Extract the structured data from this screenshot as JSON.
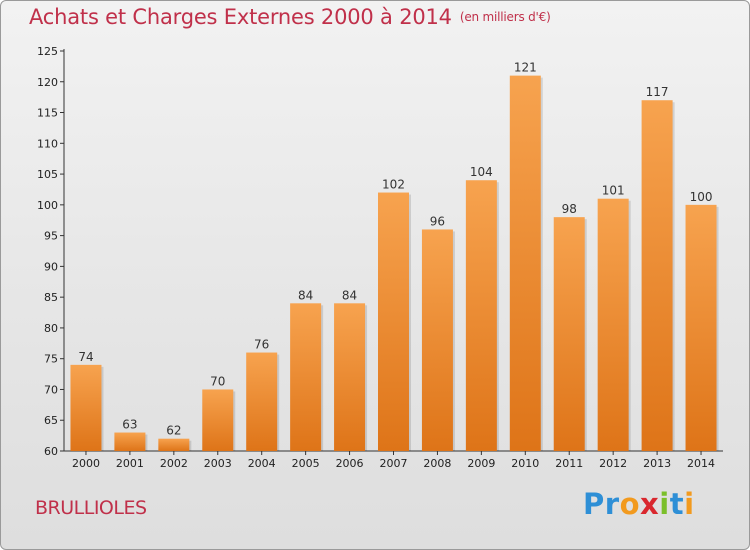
{
  "title": "Achats et Charges Externes 2000 à 2014",
  "unit": "(en milliers d'€)",
  "commune": "BRULLIOLES",
  "logo": {
    "text": "Proxiti",
    "letters": [
      "P",
      "r",
      "o",
      "x",
      "i",
      "t",
      "i"
    ],
    "colors": [
      "#2e8fd6",
      "#2e8fd6",
      "#f29a1e",
      "#d9272e",
      "#7bbf2a",
      "#2e8fd6",
      "#f29a1e"
    ]
  },
  "colors": {
    "title": "#c0304a",
    "bar_top": "#f7a34f",
    "bar_bottom": "#de7418"
  },
  "chart_data": {
    "type": "bar",
    "categories": [
      "2000",
      "2001",
      "2002",
      "2003",
      "2004",
      "2005",
      "2006",
      "2007",
      "2008",
      "2009",
      "2010",
      "2011",
      "2012",
      "2013",
      "2014"
    ],
    "values": [
      74,
      63,
      62,
      70,
      76,
      84,
      84,
      102,
      96,
      104,
      121,
      98,
      101,
      117,
      100
    ],
    "data_labels": [
      "74",
      "63",
      "62",
      "70",
      "76",
      "84",
      "84",
      "102",
      "96",
      "104",
      "121",
      "98",
      "101",
      "117",
      "100"
    ],
    "yticks": [
      "60",
      "65",
      "70",
      "75",
      "80",
      "85",
      "90",
      "95",
      "100",
      "105",
      "110",
      "115",
      "120",
      "125"
    ],
    "ylim": [
      60,
      125
    ],
    "grid": false,
    "legend": "none"
  }
}
